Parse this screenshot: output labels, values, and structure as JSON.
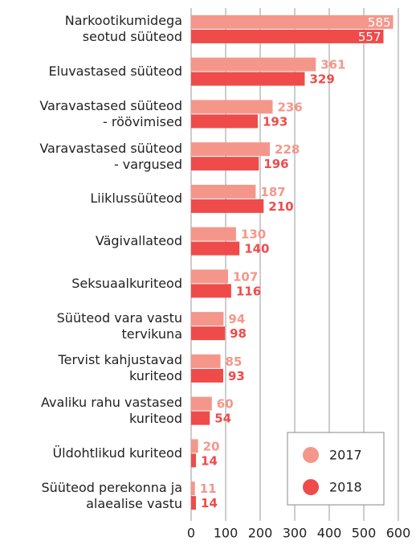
{
  "chart_data": {
    "type": "bar",
    "orientation": "horizontal",
    "categories": [
      "Narkootikumidega\nseotud süüteod",
      "Eluvastased süüteod",
      "Varavastased süüteod\n- röövimised",
      "Varavastased süüteod\n- vargused",
      "Liiklussüüteod",
      "Vägivallateod",
      "Seksuaalkuriteod",
      "Süüteod vara vastu\ntervikuna",
      "Tervist kahjustavad\nkuriteod",
      "Avaliku rahu vastased\nkuriteod",
      "Üldohtlikud kuriteod",
      "Süüteod perekonna ja\nalaealise vastu"
    ],
    "series": [
      {
        "name": "2017",
        "color": "#f4978a",
        "values": [
          585,
          361,
          236,
          228,
          187,
          130,
          107,
          94,
          85,
          60,
          20,
          11
        ]
      },
      {
        "name": "2018",
        "color": "#ef4b4b",
        "values": [
          557,
          329,
          193,
          196,
          210,
          140,
          116,
          98,
          93,
          54,
          14,
          14
        ]
      }
    ],
    "xlim": [
      0,
      600
    ],
    "xticks": [
      0,
      100,
      200,
      300,
      400,
      500,
      600
    ],
    "grid": true,
    "legend": "lower right"
  }
}
